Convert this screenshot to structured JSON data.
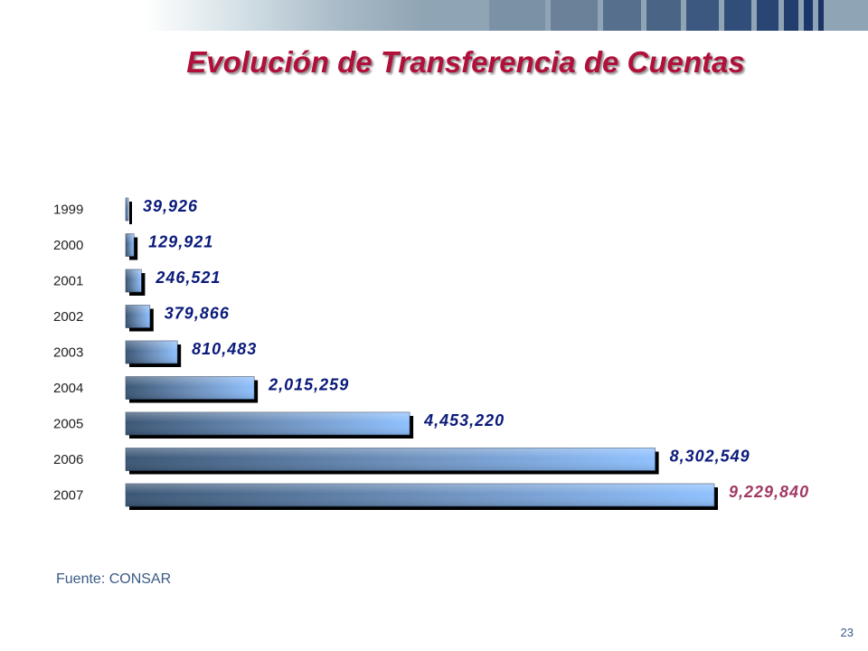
{
  "slide": {
    "title": "Evolución de Transferencia de Cuentas",
    "source": "Fuente: CONSAR",
    "page_number": "23"
  },
  "colors": {
    "title": "#b0103a",
    "value_labels": "#0a1a7a",
    "highlight_label": "#a03a64",
    "bar_dark": "#3b5675",
    "bar_light": "#8fc1ff",
    "shadow": "#000000"
  },
  "chart_data": {
    "type": "bar",
    "orientation": "horizontal",
    "categories": [
      "1999",
      "2000",
      "2001",
      "2002",
      "2003",
      "2004",
      "2005",
      "2006",
      "2007"
    ],
    "values": [
      39926,
      129921,
      246521,
      379866,
      810483,
      2015259,
      4453220,
      8302549,
      9229840
    ],
    "value_labels": [
      "39,926",
      "129,921",
      "246,521",
      "379,866",
      "810,483",
      "2,015,259",
      "4,453,220",
      "8,302,549",
      "9,229,840"
    ],
    "highlight_last": true,
    "title": "",
    "xlabel": "",
    "ylabel": "",
    "grid": false,
    "legend": "none"
  }
}
